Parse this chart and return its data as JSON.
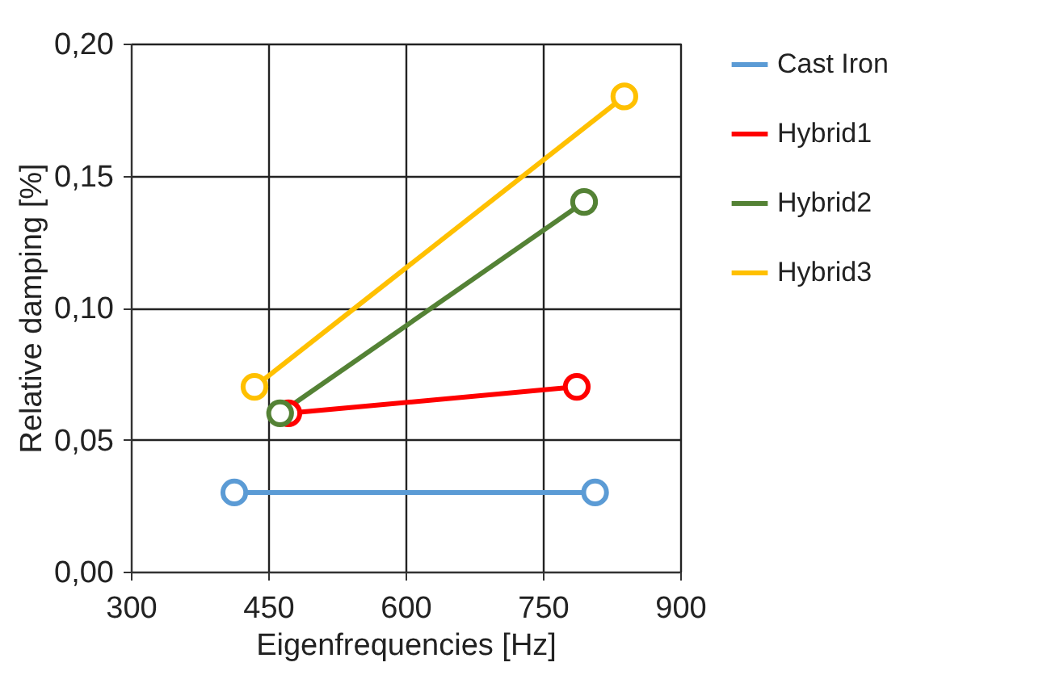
{
  "chart_data": {
    "type": "line",
    "xlabel": "Eigenfrequencies [Hz]",
    "ylabel": "Relative damping [%]",
    "xlim": [
      300,
      900
    ],
    "xticks": [
      300,
      450,
      600,
      750,
      900
    ],
    "ylim": [
      0,
      0.2
    ],
    "yticks": [
      {
        "value": 0,
        "label": "0,00"
      },
      {
        "value": 0.05,
        "label": "0,05"
      },
      {
        "value": 0.1,
        "label": "0,10"
      },
      {
        "value": 0.15,
        "label": "0,15"
      },
      {
        "value": 0.2,
        "label": "0,20"
      }
    ],
    "grid": true,
    "legend": "right",
    "marker": "circle",
    "line_style": "solid",
    "series": [
      {
        "name": "Cast Iron",
        "color": "#5b9bd5",
        "x": [
          413,
          807
        ],
        "values": [
          0.03,
          0.03
        ]
      },
      {
        "name": "Hybrid1",
        "color": "#ff0000",
        "x": [
          472,
          787
        ],
        "values": [
          0.06,
          0.07
        ]
      },
      {
        "name": "Hybrid2",
        "color": "#548235",
        "x": [
          463,
          795
        ],
        "values": [
          0.06,
          0.14
        ]
      },
      {
        "name": "Hybrid3",
        "color": "#ffc000",
        "x": [
          435,
          839
        ],
        "values": [
          0.07,
          0.18
        ]
      }
    ]
  }
}
